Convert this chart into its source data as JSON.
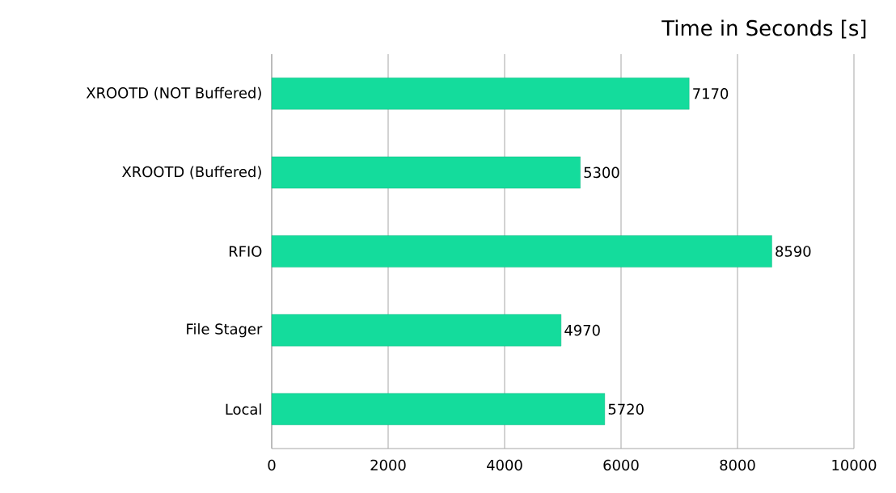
{
  "chart_data": {
    "type": "bar",
    "orientation": "horizontal",
    "title": "Time in Seconds [s]",
    "categories": [
      "XROOTD (NOT Buffered)",
      "XROOTD (Buffered)",
      "RFIO",
      "File Stager",
      "Local"
    ],
    "values": [
      7170,
      5300,
      8590,
      4970,
      5720
    ],
    "color": "#14dc9c",
    "xlim": [
      0,
      10000
    ],
    "xticks": [
      0,
      2000,
      4000,
      6000,
      8000,
      10000
    ],
    "grid": "x",
    "data_labels": true
  }
}
